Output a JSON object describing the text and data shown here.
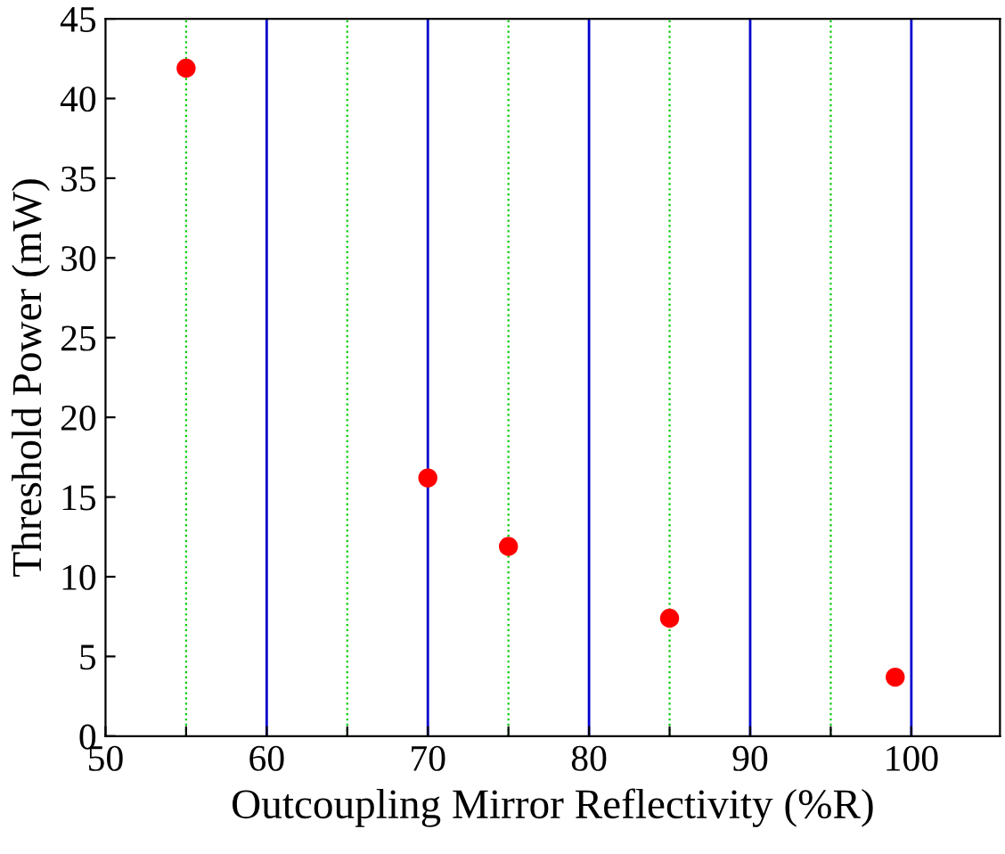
{
  "chart_data": {
    "type": "scatter",
    "xlabel": "Outcoupling Mirror Reflectivity (%R)",
    "ylabel": "Threshold Power (mW)",
    "x": [
      55,
      70,
      75,
      85,
      99
    ],
    "values": [
      41.9,
      16.2,
      11.9,
      7.4,
      3.7
    ],
    "color": "#ff0000",
    "marker": "circle",
    "xlim": [
      50,
      105.5
    ],
    "ylim": [
      0,
      45
    ],
    "xticks": [
      50,
      {
        "value": 55,
        "label": null
      },
      60,
      {
        "value": 65,
        "label": null
      },
      70,
      {
        "value": 75,
        "label": null
      },
      80,
      {
        "value": 85,
        "label": null
      },
      90,
      {
        "value": 95,
        "label": null
      },
      100
    ],
    "yticks": [
      0,
      5,
      10,
      15,
      20,
      25,
      30,
      35,
      40,
      45
    ],
    "grid": "x"
  }
}
